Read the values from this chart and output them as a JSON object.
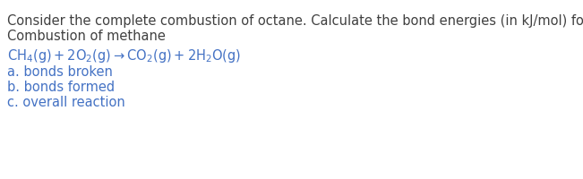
{
  "background_color": "#ffffff",
  "line1": "Consider the complete combustion of octane. Calculate the bond energies (in kJ/mol) for the:",
  "line2": "Combustion of methane",
  "equation": "CH₄(g)+2O₂(g)→CO₂(g)+2H₂O(g)",
  "item_a": "a. bonds broken",
  "item_b": "b. bonds formed",
  "item_c": "c. overall reaction",
  "blue_color": "#4472c4",
  "text_color": "#404040",
  "font_size": 10.5
}
